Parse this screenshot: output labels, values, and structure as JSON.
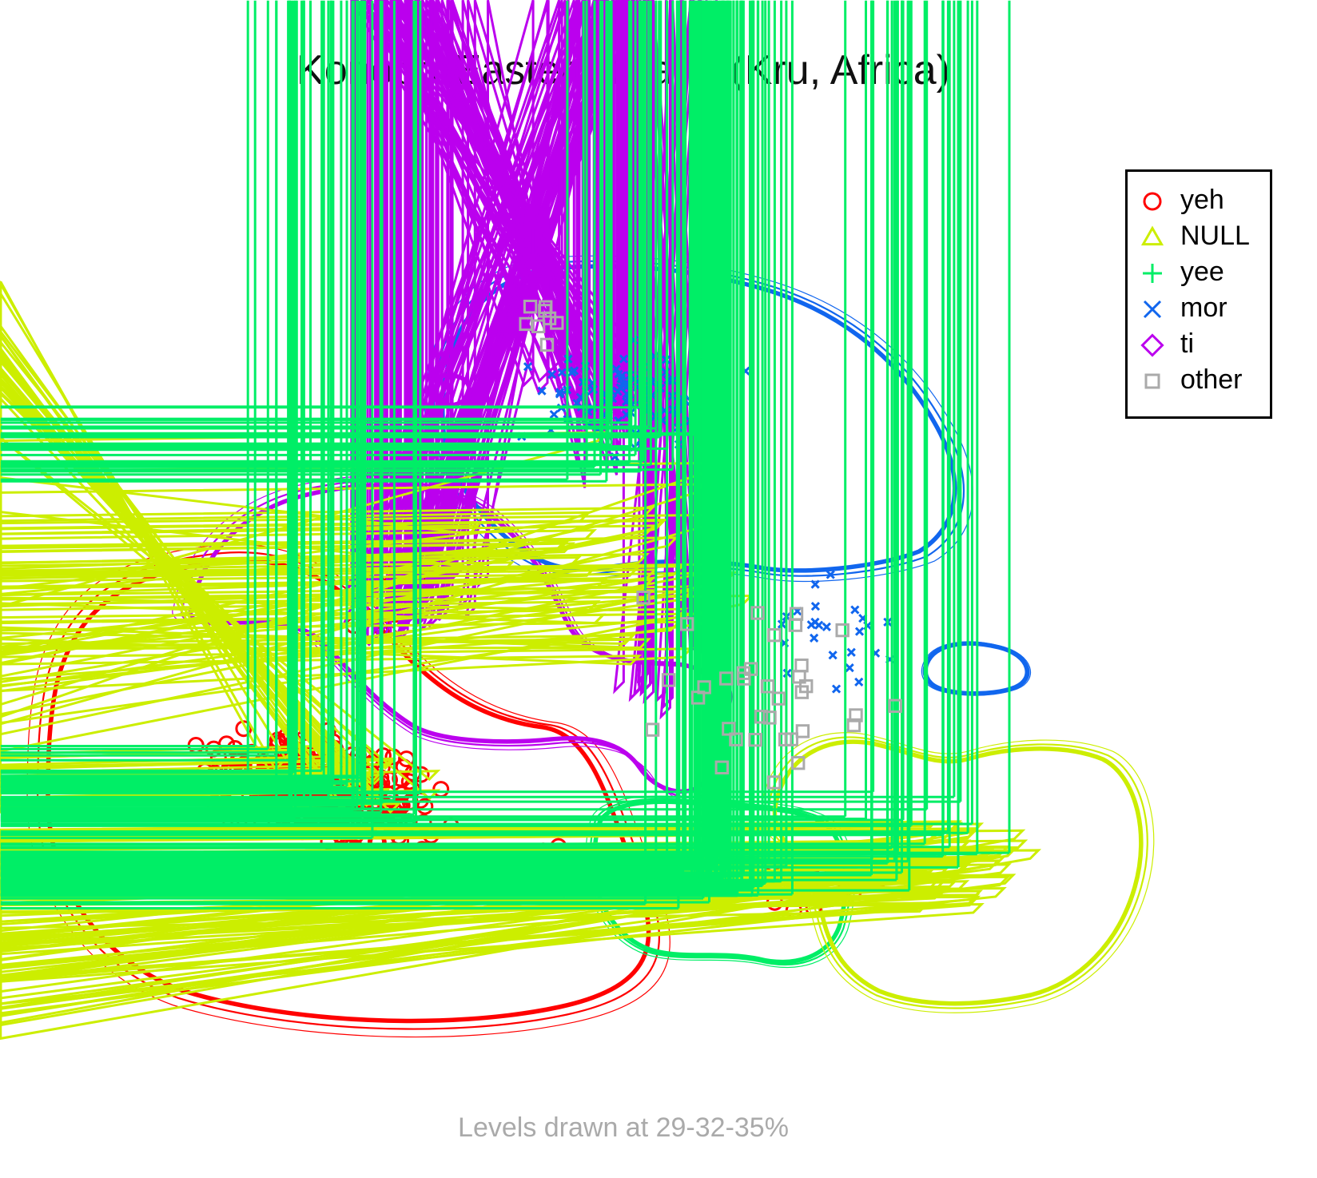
{
  "chart_data": {
    "type": "scatter",
    "title": "Konobo-Eastern Krahn (Kru, Africa)",
    "caption": "Levels drawn at 29-32-35%",
    "legend_position": "top-right",
    "series": [
      {
        "name": "yeh",
        "color": "#ff0000",
        "marker": "circle"
      },
      {
        "name": "NULL",
        "color": "#ccee00",
        "marker": "triangle"
      },
      {
        "name": "yee",
        "color": "#00ee66",
        "marker": "plus"
      },
      {
        "name": "mor",
        "color": "#1166ee",
        "marker": "cross"
      },
      {
        "name": "ti",
        "color": "#bb00ee",
        "marker": "diamond"
      },
      {
        "name": "other",
        "color": "#aaaaaa",
        "marker": "square"
      }
    ],
    "contour_levels": [
      29,
      32,
      35
    ]
  }
}
